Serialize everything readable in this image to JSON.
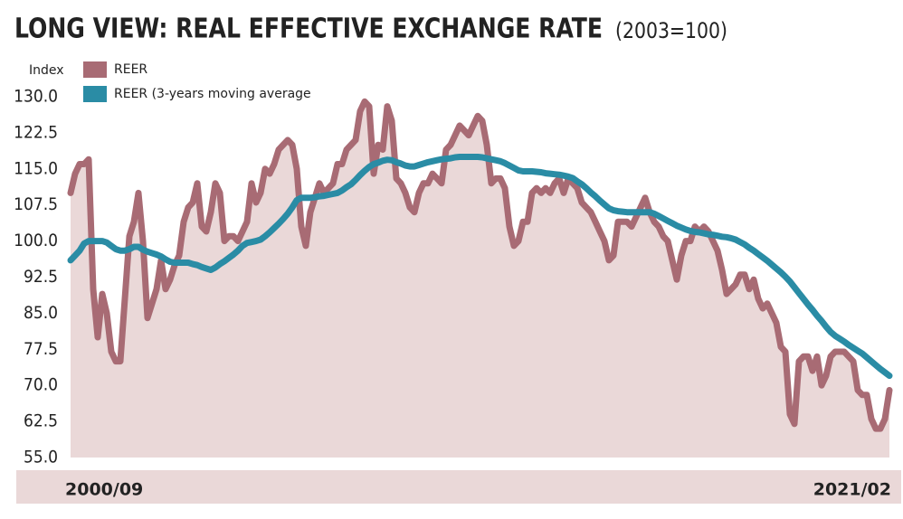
{
  "chart_data": {
    "type": "line",
    "title": "LONG VIEW: REAL EFFECTIVE EXCHANGE RATE",
    "subtitle": "(2003=100)",
    "y_label": "Index",
    "categories": [
      "2000/09",
      null,
      null,
      null,
      null,
      null,
      null,
      null,
      null,
      null,
      null,
      null,
      null,
      null,
      null,
      null,
      null,
      null,
      null,
      null,
      null,
      null,
      null,
      null,
      null,
      null,
      null,
      null,
      null,
      null,
      null,
      null,
      null,
      null,
      null,
      null,
      null,
      null,
      null,
      null,
      null,
      null,
      null,
      null,
      null,
      null,
      null,
      null,
      null,
      null,
      null,
      null,
      null,
      null,
      null,
      null,
      null,
      null,
      null,
      null,
      null,
      null,
      null,
      null,
      null,
      null,
      null,
      null,
      null,
      null,
      null,
      null,
      null,
      null,
      null,
      null,
      null,
      null,
      null,
      null,
      null,
      null,
      null,
      null,
      null,
      null,
      null,
      null,
      null,
      null,
      null,
      null,
      null,
      null,
      null,
      null,
      null,
      null,
      null,
      null,
      null,
      null,
      null,
      null,
      null,
      null,
      null,
      null,
      null,
      null,
      null,
      null,
      null,
      null,
      null,
      null,
      null,
      null,
      null,
      null,
      null,
      null,
      null,
      null,
      null,
      null,
      null,
      null,
      null,
      null,
      null,
      null,
      null,
      null,
      null,
      null,
      null,
      null,
      null,
      null,
      null,
      null,
      null,
      null,
      null,
      null,
      null,
      null,
      null,
      null,
      null,
      null,
      null,
      null,
      null,
      null,
      null,
      null,
      null,
      null,
      null,
      null,
      null,
      null,
      null,
      null,
      null,
      null,
      null,
      null,
      null,
      null,
      null,
      null,
      null,
      null,
      null,
      null,
      null,
      null,
      null,
      "2021/02"
    ],
    "series": [
      {
        "name": "REER",
        "color": "#a86b74",
        "area_color": "#ead8d8",
        "values": [
          110,
          114,
          116,
          116,
          117,
          90,
          80,
          89,
          85,
          77,
          75,
          75,
          88,
          101,
          104,
          110,
          100,
          84,
          87,
          90,
          96,
          90,
          92,
          95,
          97,
          104,
          107,
          108,
          112,
          103,
          102,
          106,
          112,
          110,
          100,
          101,
          101,
          100,
          102,
          104,
          112,
          108,
          110,
          115,
          114,
          116,
          119,
          120,
          121,
          120,
          115,
          103,
          99,
          106,
          109,
          112,
          110,
          111,
          112,
          116,
          116,
          119,
          120,
          121,
          127,
          129,
          128,
          114,
          120,
          119,
          128,
          125,
          113,
          112,
          110,
          107,
          106,
          110,
          112,
          112,
          114,
          113,
          112,
          119,
          120,
          122,
          124,
          123,
          122,
          124,
          126,
          125,
          120,
          112,
          113,
          113,
          111,
          103,
          99,
          100,
          104,
          104,
          110,
          111,
          110,
          111,
          110,
          112,
          113,
          110,
          113,
          112,
          111,
          108,
          107,
          106,
          104,
          102,
          100,
          96,
          97,
          104,
          104,
          104,
          103,
          105,
          107,
          109,
          106,
          104,
          103,
          101,
          100,
          96,
          92,
          97,
          100,
          100,
          103,
          102,
          103,
          102,
          100,
          98,
          94,
          89,
          90,
          91,
          93,
          93,
          90,
          92,
          88,
          86,
          87,
          85,
          83,
          78,
          77,
          64,
          62,
          75,
          76,
          76,
          73,
          76,
          70,
          72,
          76,
          77,
          77,
          77,
          76,
          75,
          69,
          68,
          68,
          63,
          61,
          61,
          63,
          69
        ]
      },
      {
        "name": "REER (3-years moving average",
        "color": "#2a8ca5",
        "values": [
          96,
          97,
          98,
          99.5,
          100,
          100,
          100,
          100,
          99.7,
          99,
          98.3,
          98,
          98,
          98.3,
          98.8,
          98.8,
          98.2,
          97.8,
          97.5,
          97.2,
          96.8,
          96.2,
          95.7,
          95.5,
          95.5,
          95.5,
          95.5,
          95.2,
          95,
          94.6,
          94.3,
          94,
          94.5,
          95.2,
          95.8,
          96.5,
          97.2,
          98,
          99,
          99.6,
          99.8,
          100,
          100.3,
          101,
          101.8,
          102.7,
          103.6,
          104.6,
          105.7,
          107,
          108.5,
          109,
          109,
          109,
          109.1,
          109.3,
          109.4,
          109.6,
          109.8,
          110,
          110.5,
          111.2,
          111.8,
          112.7,
          113.7,
          114.6,
          115.4,
          116,
          116.3,
          116.7,
          116.9,
          116.8,
          116.4,
          116.1,
          115.7,
          115.5,
          115.5,
          115.8,
          116.1,
          116.4,
          116.6,
          116.8,
          117,
          117.1,
          117.2,
          117.4,
          117.5,
          117.5,
          117.5,
          117.5,
          117.5,
          117.4,
          117.2,
          117,
          116.8,
          116.6,
          116.2,
          115.7,
          115.2,
          114.7,
          114.5,
          114.5,
          114.5,
          114.4,
          114.3,
          114.1,
          114,
          113.9,
          113.8,
          113.6,
          113.4,
          113.1,
          112.4,
          111.8,
          111,
          110.1,
          109.3,
          108.4,
          107.6,
          106.8,
          106.4,
          106.2,
          106.1,
          106,
          106,
          106,
          106,
          106,
          106,
          105.7,
          105.2,
          104.7,
          104.2,
          103.7,
          103.2,
          102.8,
          102.4,
          102.1,
          101.9,
          101.8,
          101.6,
          101.4,
          101.3,
          101.1,
          100.9,
          100.8,
          100.6,
          100.3,
          99.8,
          99.3,
          98.6,
          98,
          97.3,
          96.6,
          95.9,
          95.1,
          94.3,
          93.5,
          92.6,
          91.6,
          90.4,
          89.2,
          88,
          86.8,
          85.7,
          84.5,
          83.4,
          82.2,
          81.1,
          80.3,
          79.7,
          79.1,
          78.4,
          77.8,
          77.2,
          76.6,
          75.8,
          75,
          74.2,
          73.4,
          72.7,
          72
        ]
      }
    ],
    "ylim": [
      55,
      130
    ],
    "yticks": [
      {
        "value": 55,
        "label": "55.0"
      },
      {
        "value": 62.5,
        "label": "62.5"
      },
      {
        "value": 70,
        "label": "70.0"
      },
      {
        "value": 77.5,
        "label": "77.5"
      },
      {
        "value": 85,
        "label": "85.0"
      },
      {
        "value": 92.5,
        "label": "92.5"
      },
      {
        "value": 100,
        "label": "100.0"
      },
      {
        "value": 107.5,
        "label": "107.5"
      },
      {
        "value": 115,
        "label": "115.0"
      },
      {
        "value": 122.5,
        "label": "122.5"
      },
      {
        "value": 130,
        "label": "130.0"
      }
    ],
    "grid": false,
    "legend": "top-left"
  }
}
